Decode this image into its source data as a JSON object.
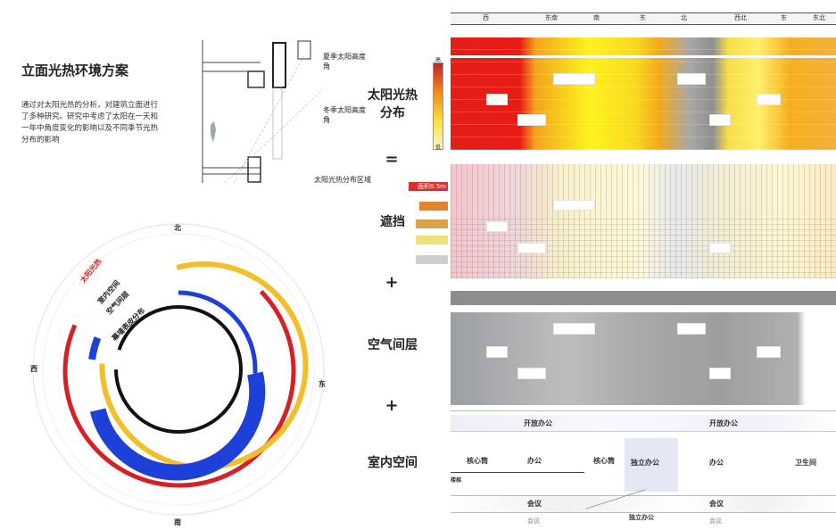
{
  "page": {
    "title": "立面光热环境方案",
    "intro": "通过对太阳光热的分析，对建筑立面进行了多种研究。研究中考虑了太阳在一天和一年中角度变化的影响以及不同季节光热分布的影响"
  },
  "section_diagram": {
    "summer_label": "夏季太阳高度角",
    "winter_label": "冬季太阳高度角",
    "ground_label": "太阳光热分布区域"
  },
  "rings": {
    "labels": [
      "太阳光热",
      "室内空间",
      "空气间层",
      "幕墙表皮分布"
    ],
    "compass": {
      "north": "北",
      "east": "东",
      "south": "南",
      "west": "西"
    },
    "colors": {
      "red": "#d91f26",
      "yellow": "#f2bf2a",
      "blue": "#1d41d8",
      "black": "#111111"
    }
  },
  "stack": {
    "solar": "太阳光热\n分布",
    "equals": "=",
    "shading": "遮挡",
    "plus1": "+",
    "air": "空气间层",
    "plus2": "+",
    "indoor": "室内空间"
  },
  "top_header": [
    "西",
    "东南",
    "南",
    "东",
    "北",
    "西北",
    "东",
    "东北"
  ],
  "heat_legend": {
    "top": "高",
    "bottom": "低"
  },
  "shade_legend": [
    "面积0.5m",
    "",
    "",
    "",
    ""
  ],
  "floor_plan": {
    "top_row": [
      "开放办公",
      "开放办公"
    ],
    "mid_row": [
      "核心筒",
      "办公",
      "核心筒",
      "独立办公",
      "办公",
      "卫生间"
    ],
    "bottom_row": [
      "会议",
      "会议",
      "独立办公",
      "会议",
      "会议"
    ],
    "small": [
      "楼梯",
      "走道"
    ]
  }
}
